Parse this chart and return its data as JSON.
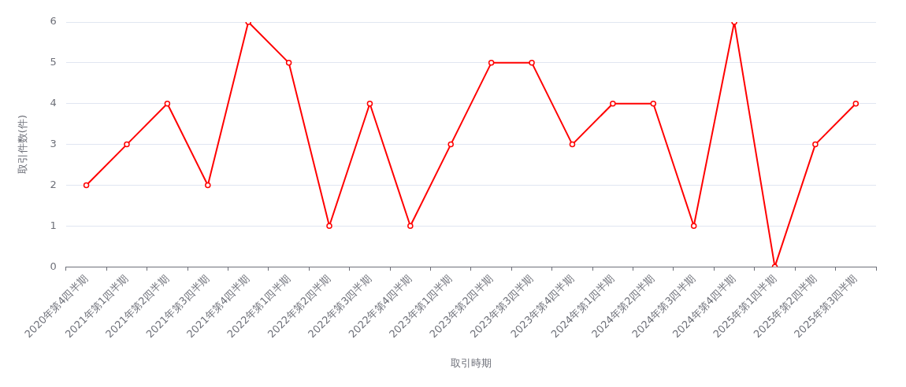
{
  "chart_data": {
    "type": "line",
    "xlabel": "取引時期",
    "ylabel": "取引件数(件)",
    "categories": [
      "2020年第4四半期",
      "2021年第1四半期",
      "2021年第2四半期",
      "2021年第3四半期",
      "2021年第4四半期",
      "2022年第1四半期",
      "2022年第2四半期",
      "2022年第3四半期",
      "2022年第4四半期",
      "2023年第1四半期",
      "2023年第2四半期",
      "2023年第3四半期",
      "2023年第4四半期",
      "2024年第1四半期",
      "2024年第2四半期",
      "2024年第3四半期",
      "2024年第4四半期",
      "2025年第1四半期",
      "2025年第2四半期",
      "2025年第3四半期"
    ],
    "series": [
      {
        "color": "#ff0000",
        "values": [
          2,
          3,
          4,
          2,
          6,
          5,
          1,
          4,
          1,
          3,
          5,
          5,
          3,
          4,
          4,
          1,
          6,
          0,
          3,
          4
        ]
      }
    ],
    "ylim": [
      0,
      6
    ],
    "yticks": [
      0,
      1,
      2,
      3,
      4,
      5,
      6
    ],
    "grid": "y",
    "legend": false,
    "marker": "circle",
    "line_style": "solid"
  }
}
